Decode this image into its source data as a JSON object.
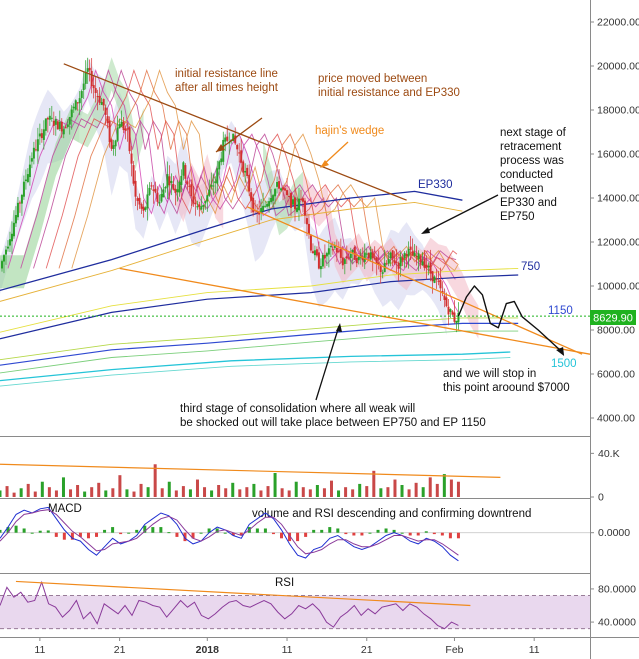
{
  "colors": {
    "brown": "#9c4a12",
    "orange": "#f08a1c",
    "blue_dark": "#1f2d9e",
    "blue": "#2f49d1",
    "cyan": "#25c4d8",
    "green": "#2aa12a",
    "yellow": "#d7d73a",
    "price_tag": "#1fb21f",
    "rsi_fill": "#e9d8ee",
    "rsi_line": "#8a3a9a",
    "macd_line": "#1f2fd1",
    "signal_line": "#8a3a9a",
    "hist_red": "#e04040",
    "hist_green": "#2aa12a"
  },
  "price_tag": "8629.90",
  "annotations": {
    "initial_resistance": [
      "initial resistance line",
      "after all times height"
    ],
    "price_moved": [
      "price moved between",
      "initial resistance and EP330"
    ],
    "wedge": "hajin's wedge",
    "next_stage": [
      "next stage of",
      "retracement",
      "process was",
      "conducted",
      "between",
      "EP330 and",
      "EP750"
    ],
    "third_stage": [
      "third stage of consolidation where all weak will",
      "be shocked out will take place between EP750 and EP 1150"
    ],
    "stop": [
      "and we will stop in",
      "this point aroound $7000"
    ],
    "vol_rsi": "volume and RSI descending and confirming downtrend",
    "ep330": "EP330",
    "ep750": "750",
    "ep1150": "1150",
    "ep1500": "1500",
    "macd": "MACD",
    "rsi": "RSI"
  },
  "chart_data": [
    {
      "type": "candlestick",
      "panel": "price",
      "y_ticks": [
        "22000.00",
        "20000.00",
        "18000.00",
        "16000.00",
        "14000.00",
        "12000.00",
        "10000.00",
        "8000.00",
        "6000.00",
        "4000.00"
      ],
      "y_tick_values": [
        22000,
        20000,
        18000,
        16000,
        14000,
        12000,
        10000,
        8000,
        6000,
        4000
      ],
      "ylim": [
        3200,
        22800
      ],
      "x_ticks": [
        "11",
        "21",
        "2018",
        "11",
        "21",
        "Feb",
        "11"
      ],
      "x_tick_days": [
        11,
        21,
        32,
        42,
        52,
        63,
        73
      ],
      "xlim": [
        6,
        80
      ],
      "close_path": [
        [
          6,
          10800
        ],
        [
          8,
          13200
        ],
        [
          10,
          15900
        ],
        [
          12,
          17600
        ],
        [
          14,
          17200
        ],
        [
          16,
          18600
        ],
        [
          17,
          19800
        ],
        [
          18,
          18800
        ],
        [
          19,
          18200
        ],
        [
          20,
          16200
        ],
        [
          21,
          17500
        ],
        [
          22,
          16900
        ],
        [
          23,
          14000
        ],
        [
          24,
          13300
        ],
        [
          25,
          14600
        ],
        [
          26,
          13800
        ],
        [
          27,
          15000
        ],
        [
          28,
          14300
        ],
        [
          29,
          15400
        ],
        [
          30,
          14000
        ],
        [
          31,
          13500
        ],
        [
          32,
          14100
        ],
        [
          33,
          14800
        ],
        [
          34,
          16400
        ],
        [
          35,
          16900
        ],
        [
          36,
          16000
        ],
        [
          37,
          14800
        ],
        [
          38,
          13200
        ],
        [
          39,
          13500
        ],
        [
          40,
          14200
        ],
        [
          41,
          14600
        ],
        [
          42,
          14000
        ],
        [
          43,
          13600
        ],
        [
          44,
          14000
        ],
        [
          45,
          11800
        ],
        [
          46,
          11000
        ],
        [
          47,
          11400
        ],
        [
          48,
          11800
        ],
        [
          49,
          11100
        ],
        [
          50,
          11500
        ],
        [
          51,
          11200
        ],
        [
          52,
          11600
        ],
        [
          53,
          11000
        ],
        [
          54,
          10700
        ],
        [
          55,
          11300
        ],
        [
          56,
          11000
        ],
        [
          57,
          11600
        ],
        [
          58,
          11300
        ],
        [
          59,
          11200
        ],
        [
          60,
          10600
        ],
        [
          61,
          10000
        ],
        [
          62,
          9100
        ],
        [
          63,
          8500
        ],
        [
          63.5,
          8630
        ]
      ],
      "projection_path": [
        [
          63.5,
          8630
        ],
        [
          64.5,
          9500
        ],
        [
          65.5,
          10000
        ],
        [
          66.5,
          9600
        ],
        [
          67.5,
          8300
        ],
        [
          68.5,
          8100
        ],
        [
          69.5,
          9200
        ],
        [
          70.5,
          9300
        ],
        [
          71.5,
          8600
        ],
        [
          73.5,
          8000
        ],
        [
          76.5,
          7000
        ]
      ],
      "ep330": [
        [
          6,
          9800
        ],
        [
          20,
          11200
        ],
        [
          32,
          12600
        ],
        [
          40,
          13500
        ],
        [
          50,
          14000
        ],
        [
          58,
          14300
        ],
        [
          64,
          13900
        ]
      ],
      "ep750": [
        [
          6,
          7600
        ],
        [
          20,
          8800
        ],
        [
          32,
          9400
        ],
        [
          45,
          9700
        ],
        [
          55,
          10200
        ],
        [
          64,
          10400
        ],
        [
          71,
          10500
        ]
      ],
      "ep1150": [
        [
          6,
          6400
        ],
        [
          20,
          7100
        ],
        [
          32,
          7400
        ],
        [
          45,
          7800
        ],
        [
          55,
          8100
        ],
        [
          64,
          8300
        ],
        [
          71,
          8300
        ]
      ],
      "ep1500": [
        [
          6,
          5700
        ],
        [
          20,
          6200
        ],
        [
          35,
          6600
        ],
        [
          50,
          6800
        ],
        [
          64,
          6900
        ],
        [
          70,
          7000
        ]
      ],
      "resistance_line": [
        [
          14,
          20100
        ],
        [
          57,
          13900
        ]
      ],
      "support_line": [
        [
          21,
          10800
        ],
        [
          80,
          6900
        ]
      ],
      "wedge_line": [
        [
          37,
          13600
        ],
        [
          79,
          6900
        ]
      ],
      "price_level_line": 8630
    },
    {
      "type": "bar",
      "panel": "volume",
      "y_ticks": [
        "40.K",
        "0"
      ],
      "y_tick_values": [
        40000,
        0
      ],
      "ylim": [
        0,
        55000
      ],
      "trend_line": [
        [
          6,
          30000
        ],
        [
          65,
          18000
        ]
      ],
      "values": [
        6,
        10,
        4,
        8,
        12,
        5,
        14,
        9,
        6,
        18,
        7,
        11,
        5,
        9,
        13,
        6,
        8,
        20,
        7,
        5,
        12,
        9,
        30,
        8,
        14,
        6,
        10,
        7,
        16,
        9,
        6,
        11,
        8,
        13,
        7,
        9,
        12,
        6,
        10,
        22,
        8,
        6,
        14,
        9,
        7,
        11,
        8,
        15,
        6,
        9,
        7,
        12,
        10,
        24,
        8,
        9,
        16,
        11,
        7,
        13,
        9,
        18,
        12,
        21,
        16,
        14
      ]
    },
    {
      "type": "line",
      "panel": "macd",
      "y_ticks": [
        "0.0000"
      ],
      "y_tick_values": [
        0
      ],
      "ylim": [
        -1400,
        1200
      ],
      "macd": [
        -200,
        200,
        650,
        800,
        700,
        850,
        900,
        500,
        100,
        -200,
        -300,
        -600,
        -800,
        -500,
        -200,
        -400,
        -300,
        -100,
        300,
        500,
        700,
        600,
        300,
        -200,
        -400,
        -300,
        0,
        200,
        100,
        -100,
        -200,
        300,
        500,
        700,
        500,
        100,
        -400,
        -800,
        -900,
        -600,
        -500,
        -200,
        -100,
        -300,
        -500,
        -600,
        -500,
        -300,
        -100,
        0,
        -100,
        -300,
        -400,
        -200,
        -300,
        -500,
        -800,
        -1000
      ],
      "signal": [
        -300,
        0,
        400,
        650,
        700,
        780,
        820,
        650,
        350,
        50,
        -150,
        -400,
        -650,
        -600,
        -400,
        -350,
        -300,
        -200,
        50,
        300,
        500,
        580,
        450,
        100,
        -200,
        -300,
        -150,
        50,
        100,
        0,
        -100,
        100,
        350,
        550,
        550,
        300,
        -100,
        -500,
        -750,
        -700,
        -600,
        -400,
        -250,
        -250,
        -400,
        -500,
        -500,
        -400,
        -250,
        -100,
        -100,
        -200,
        -300,
        -250,
        -250,
        -400,
        -600,
        -800
      ]
    },
    {
      "type": "line",
      "panel": "rsi",
      "y_ticks": [
        "80.0000",
        "40.0000"
      ],
      "y_tick_values": [
        80,
        40
      ],
      "ylim": [
        22,
        98
      ],
      "band": [
        32,
        72
      ],
      "trend_line": [
        [
          8,
          89
        ],
        [
          65,
          60
        ]
      ],
      "values": [
        60,
        82,
        70,
        76,
        64,
        66,
        88,
        62,
        58,
        46,
        54,
        66,
        44,
        52,
        38,
        62,
        56,
        50,
        60,
        48,
        66,
        64,
        60,
        58,
        46,
        56,
        66,
        58,
        64,
        48,
        44,
        50,
        58,
        64,
        66,
        60,
        58,
        62,
        66,
        62,
        52,
        44,
        50,
        60,
        56,
        62,
        54,
        40,
        34,
        46,
        52,
        60,
        48,
        56,
        50,
        58,
        60,
        62,
        54,
        62,
        58,
        50,
        44,
        36,
        32,
        40,
        36
      ]
    }
  ]
}
